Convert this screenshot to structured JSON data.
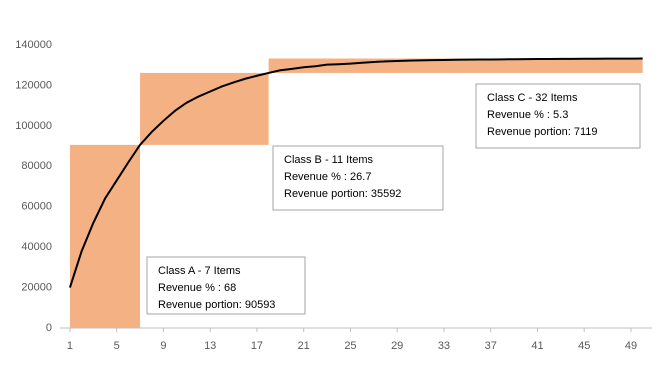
{
  "chart_data": {
    "type": "line",
    "x": [
      1,
      2,
      3,
      4,
      5,
      6,
      7,
      8,
      9,
      10,
      11,
      12,
      13,
      14,
      15,
      16,
      17,
      18,
      19,
      20,
      21,
      22,
      23,
      24,
      25,
      26,
      27,
      28,
      29,
      30,
      31,
      32,
      33,
      34,
      35,
      36,
      37,
      38,
      39,
      40,
      41,
      42,
      43,
      44,
      45,
      46,
      47,
      48,
      49,
      50
    ],
    "values": [
      20000,
      38000,
      52000,
      64000,
      73000,
      82000,
      90593,
      97000,
      102500,
      107500,
      111500,
      114500,
      117000,
      119500,
      121500,
      123300,
      124800,
      126185,
      127500,
      128200,
      129000,
      129500,
      130300,
      130500,
      130800,
      131200,
      131600,
      131900,
      132100,
      132300,
      132400,
      132500,
      132600,
      132700,
      132750,
      132800,
      132850,
      132900,
      132950,
      133000,
      133050,
      133100,
      133120,
      133150,
      133180,
      133200,
      133230,
      133260,
      133280,
      133304
    ],
    "color": "#000000",
    "class_color": "#f4b183",
    "classes": [
      {
        "title": "Class A - 7 Items",
        "lines": [
          "Revenue % : 68",
          "Revenue portion: 90593"
        ],
        "value": 90593,
        "x_range": [
          1,
          7
        ]
      },
      {
        "title": "Class B - 11 Items",
        "lines": [
          "Revenue % : 26.7",
          "Revenue portion: 35592"
        ],
        "value": 35592,
        "x_range": [
          7,
          18
        ]
      },
      {
        "title": "Class C - 32 Items",
        "lines": [
          "Revenue % : 5.3",
          "Revenue portion: 7119"
        ],
        "value": 7119,
        "x_range": [
          18,
          50
        ]
      }
    ],
    "xlim": [
      0.15,
      50.8
    ],
    "ylim": [
      0,
      140000
    ],
    "xticks": [
      1,
      5,
      9,
      13,
      17,
      21,
      25,
      29,
      33,
      37,
      41,
      45,
      49
    ],
    "yticks": [
      0,
      20000,
      40000,
      60000,
      80000,
      100000,
      120000,
      140000
    ]
  }
}
